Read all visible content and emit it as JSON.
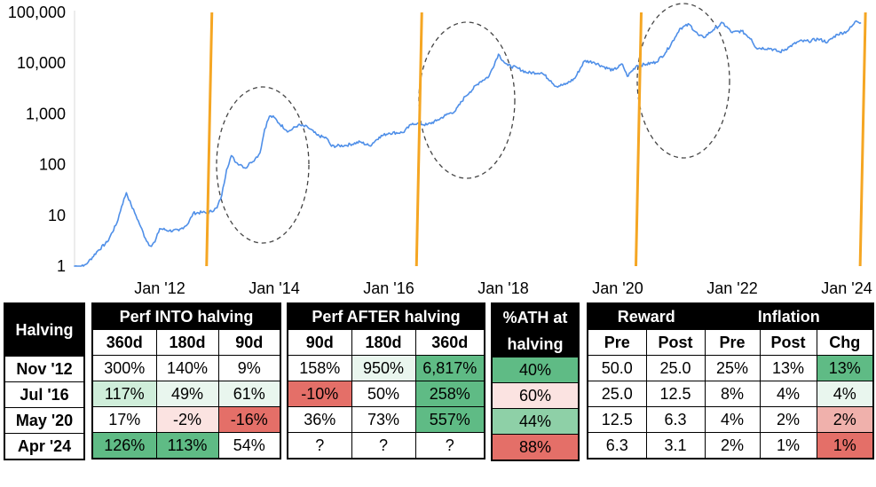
{
  "chart_data": {
    "type": "line",
    "y_scale": "log",
    "ylim": [
      1,
      100000
    ],
    "y_ticks": [
      "100,000",
      "10,000",
      "1,000",
      "100",
      "10",
      "1"
    ],
    "x_ticks": [
      "Jan '12",
      "Jan '14",
      "Jan '16",
      "Jan '18",
      "Jan '20",
      "Jan '22",
      "Jan '24"
    ],
    "x_range": [
      "2010-07",
      "2024-04"
    ],
    "series": [
      {
        "color": "#4f8fe8",
        "points": [
          [
            "2010-07",
            1
          ],
          [
            "2010-09",
            1
          ],
          [
            "2010-10",
            1.2
          ],
          [
            "2010-12",
            2
          ],
          [
            "2011-02",
            3
          ],
          [
            "2011-04",
            7
          ],
          [
            "2011-05",
            15
          ],
          [
            "2011-06",
            28
          ],
          [
            "2011-07",
            16
          ],
          [
            "2011-08",
            10
          ],
          [
            "2011-09",
            6
          ],
          [
            "2011-10",
            3.5
          ],
          [
            "2011-11",
            2.5
          ],
          [
            "2011-12",
            3
          ],
          [
            "2012-01",
            5.5
          ],
          [
            "2012-03",
            5
          ],
          [
            "2012-05",
            5
          ],
          [
            "2012-07",
            7
          ],
          [
            "2012-08",
            11
          ],
          [
            "2012-10",
            11.5
          ],
          [
            "2012-11",
            11
          ],
          [
            "2013-01",
            14
          ],
          [
            "2013-02",
            25
          ],
          [
            "2013-03",
            80
          ],
          [
            "2013-04",
            150
          ],
          [
            "2013-05",
            110
          ],
          [
            "2013-06",
            100
          ],
          [
            "2013-07",
            85
          ],
          [
            "2013-08",
            110
          ],
          [
            "2013-09",
            130
          ],
          [
            "2013-10",
            170
          ],
          [
            "2013-11",
            500
          ],
          [
            "2013-12",
            900
          ],
          [
            "2014-01",
            850
          ],
          [
            "2014-02",
            650
          ],
          [
            "2014-04",
            450
          ],
          [
            "2014-06",
            600
          ],
          [
            "2014-08",
            550
          ],
          [
            "2014-10",
            380
          ],
          [
            "2014-12",
            330
          ],
          [
            "2015-01",
            230
          ],
          [
            "2015-04",
            240
          ],
          [
            "2015-07",
            280
          ],
          [
            "2015-09",
            235
          ],
          [
            "2015-11",
            350
          ],
          [
            "2016-01",
            420
          ],
          [
            "2016-04",
            430
          ],
          [
            "2016-06",
            650
          ],
          [
            "2016-07",
            650
          ],
          [
            "2016-09",
            610
          ],
          [
            "2016-11",
            730
          ],
          [
            "2017-01",
            950
          ],
          [
            "2017-03",
            1150
          ],
          [
            "2017-05",
            2200
          ],
          [
            "2017-06",
            2700
          ],
          [
            "2017-08",
            4200
          ],
          [
            "2017-10",
            5500
          ],
          [
            "2017-12",
            15000
          ],
          [
            "2018-01",
            11000
          ],
          [
            "2018-02",
            9000
          ],
          [
            "2018-04",
            8000
          ],
          [
            "2018-06",
            6500
          ],
          [
            "2018-09",
            6500
          ],
          [
            "2018-11",
            4500
          ],
          [
            "2018-12",
            3500
          ],
          [
            "2019-02",
            3800
          ],
          [
            "2019-04",
            5000
          ],
          [
            "2019-06",
            11000
          ],
          [
            "2019-08",
            10500
          ],
          [
            "2019-10",
            8500
          ],
          [
            "2019-12",
            7200
          ],
          [
            "2020-02",
            9500
          ],
          [
            "2020-03",
            5500
          ],
          [
            "2020-05",
            9000
          ],
          [
            "2020-07",
            9500
          ],
          [
            "2020-09",
            10500
          ],
          [
            "2020-11",
            16000
          ],
          [
            "2021-01",
            32000
          ],
          [
            "2021-02",
            48000
          ],
          [
            "2021-04",
            58000
          ],
          [
            "2021-06",
            35000
          ],
          [
            "2021-07",
            32000
          ],
          [
            "2021-09",
            45000
          ],
          [
            "2021-11",
            62000
          ],
          [
            "2022-01",
            40000
          ],
          [
            "2022-03",
            43000
          ],
          [
            "2022-05",
            30000
          ],
          [
            "2022-06",
            20000
          ],
          [
            "2022-09",
            19500
          ],
          [
            "2022-11",
            16500
          ],
          [
            "2023-01",
            21000
          ],
          [
            "2023-03",
            27000
          ],
          [
            "2023-05",
            27000
          ],
          [
            "2023-07",
            30000
          ],
          [
            "2023-09",
            26000
          ],
          [
            "2023-11",
            37000
          ],
          [
            "2024-01",
            42000
          ],
          [
            "2024-02",
            52000
          ],
          [
            "2024-03",
            68000
          ],
          [
            "2024-04",
            63000
          ]
        ]
      }
    ],
    "halving_lines": {
      "color": "#f5a623",
      "dates": [
        "2012-11",
        "2016-07",
        "2020-05",
        "2024-04"
      ]
    }
  },
  "table": {
    "halving_header": "Halving",
    "perf_into": {
      "title": "Perf INTO halving",
      "cols": [
        "360d",
        "180d",
        "90d"
      ]
    },
    "perf_after": {
      "title": "Perf AFTER halving",
      "cols": [
        "90d",
        "180d",
        "360d"
      ]
    },
    "ath": {
      "title_line1": "%ATH at",
      "title_line2": "halving"
    },
    "reward": {
      "title": "Reward",
      "cols": [
        "Pre",
        "Post"
      ]
    },
    "inflation": {
      "title": "Inflation",
      "cols": [
        "Pre",
        "Post",
        "Chg"
      ]
    },
    "rows": [
      {
        "halving": "Nov '12",
        "into": [
          "300%",
          "140%",
          "9%"
        ],
        "after": [
          "158%",
          "950%",
          "6,817%"
        ],
        "ath": "40%",
        "reward": [
          "50.0",
          "25.0"
        ],
        "inflation": [
          "25%",
          "13%",
          "13%"
        ]
      },
      {
        "halving": "Jul '16",
        "into": [
          "117%",
          "49%",
          "61%"
        ],
        "after": [
          "-10%",
          "50%",
          "258%"
        ],
        "ath": "60%",
        "reward": [
          "25.0",
          "12.5"
        ],
        "inflation": [
          "8%",
          "4%",
          "4%"
        ]
      },
      {
        "halving": "May '20",
        "into": [
          "17%",
          "-2%",
          "-16%"
        ],
        "after": [
          "36%",
          "73%",
          "557%"
        ],
        "ath": "44%",
        "reward": [
          "12.5",
          "6.3"
        ],
        "inflation": [
          "4%",
          "2%",
          "2%"
        ]
      },
      {
        "halving": "Apr '24",
        "into": [
          "126%",
          "113%",
          "54%"
        ],
        "after": [
          "?",
          "?",
          "?"
        ],
        "ath": "88%",
        "reward": [
          "6.3",
          "3.1"
        ],
        "inflation": [
          "2%",
          "1%",
          "1%"
        ]
      }
    ]
  }
}
